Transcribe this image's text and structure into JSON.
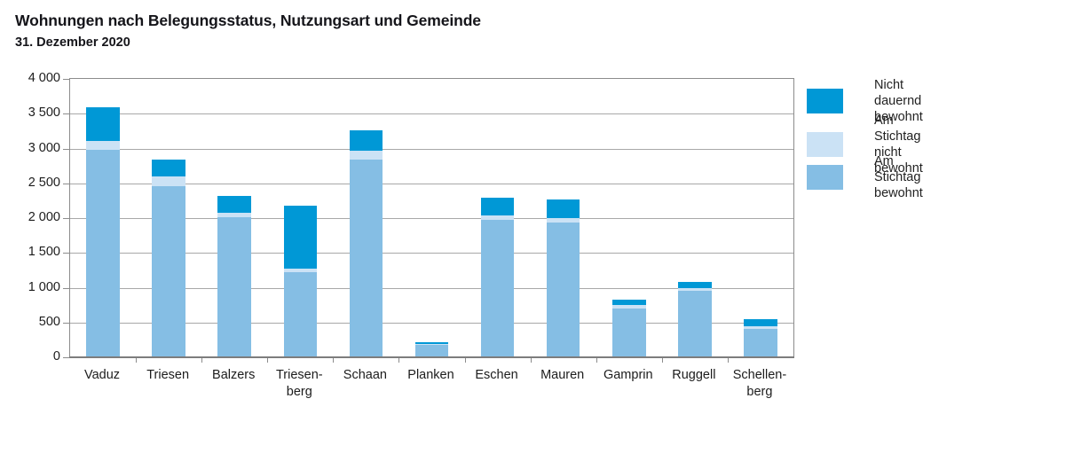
{
  "chart_data": {
    "type": "bar",
    "stacked": true,
    "title": "Wohnungen nach Belegungsstatus, Nutzungsart und Gemeinde",
    "subtitle": "31. Dezember 2020",
    "categories": [
      "Vaduz",
      "Triesen",
      "Balzers",
      "Triesen-\nberg",
      "Schaan",
      "Planken",
      "Eschen",
      "Mauren",
      "Gamprin",
      "Ruggell",
      "Schellen-\nberg"
    ],
    "series": [
      {
        "name": "Am Stichtag bewohnt",
        "color": "#85bee4",
        "values": [
          2975,
          2455,
          2010,
          1220,
          2840,
          175,
          1980,
          1935,
          700,
          955,
          405
        ]
      },
      {
        "name": "Am Stichtag nicht bewohnt",
        "color": "#cbe2f5",
        "values": [
          135,
          140,
          65,
          60,
          125,
          10,
          55,
          60,
          50,
          40,
          45
        ]
      },
      {
        "name": "Nicht dauernd bewohnt",
        "color": "#0098d6",
        "values": [
          485,
          250,
          245,
          900,
          295,
          30,
          255,
          270,
          80,
          85,
          95
        ]
      }
    ],
    "totals": [
      3595,
      2845,
      2320,
      2180,
      3260,
      215,
      2290,
      2265,
      830,
      1080,
      545
    ],
    "ylim": [
      0,
      4000
    ],
    "ytick_step": 500,
    "ytick_labels": [
      "0",
      "500",
      "1 000",
      "1 500",
      "2 000",
      "2 500",
      "3 000",
      "3 500",
      "4 000"
    ],
    "grid": true,
    "legend_position": "right",
    "legend": [
      {
        "label": "Nicht dauernd bewohnt",
        "color": "#0098d6"
      },
      {
        "label": "Am Stichtag\nnicht bewohnt",
        "color": "#cbe2f5"
      },
      {
        "label": "Am Stichtag bewohnt",
        "color": "#85bee4"
      }
    ],
    "colors": {
      "gridline": "#a8a8a8",
      "plot_border": "#8c8c8c",
      "x_axis": "#7d7d7d",
      "text": "#1c1c1c"
    }
  }
}
